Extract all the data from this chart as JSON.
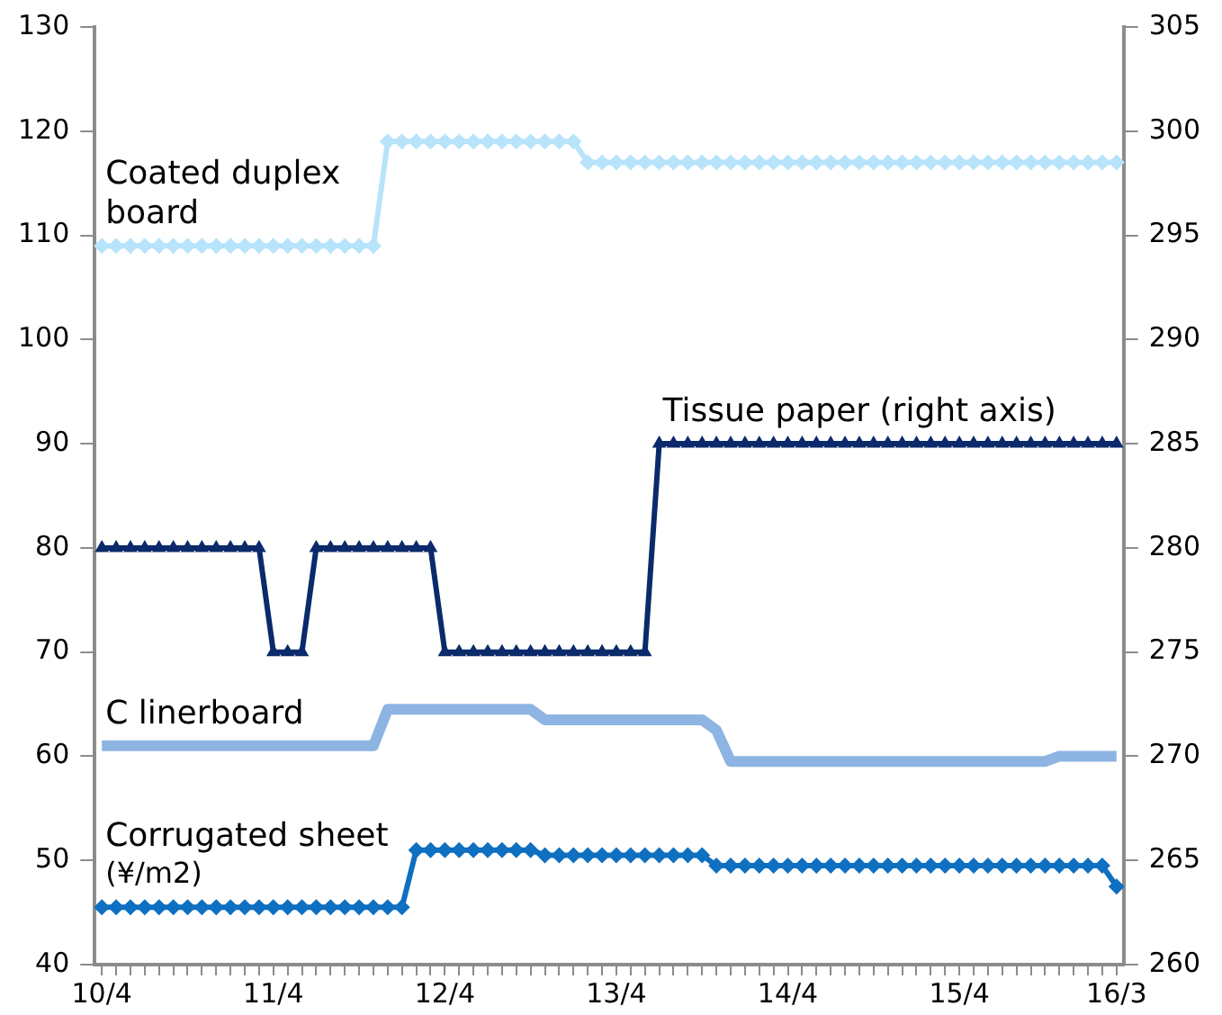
{
  "chart_data": {
    "type": "line",
    "categories": [
      "10/4",
      null,
      null,
      null,
      null,
      null,
      null,
      null,
      null,
      null,
      null,
      null,
      "11/4",
      null,
      null,
      null,
      null,
      null,
      null,
      null,
      null,
      null,
      null,
      null,
      "12/4",
      null,
      null,
      null,
      null,
      null,
      null,
      null,
      null,
      null,
      null,
      null,
      "13/4",
      null,
      null,
      null,
      null,
      null,
      null,
      null,
      null,
      null,
      null,
      null,
      "14/4",
      null,
      null,
      null,
      null,
      null,
      null,
      null,
      null,
      null,
      null,
      null,
      "15/4",
      null,
      null,
      null,
      null,
      null,
      null,
      null,
      null,
      null,
      null,
      "16/3"
    ],
    "ylim": [
      40,
      130
    ],
    "yticks": [
      40,
      50,
      60,
      70,
      80,
      90,
      100,
      110,
      120,
      130
    ],
    "y2lim": [
      260,
      305
    ],
    "y2ticks": [
      260,
      265,
      270,
      275,
      280,
      285,
      290,
      295,
      300,
      305
    ],
    "grid": false,
    "legend": false,
    "line_style": "solid",
    "annotations": [
      "(¥/m2)"
    ],
    "series": [
      {
        "name": "Coated duplex board",
        "color": "#b7e4fb",
        "marker": "diamond",
        "values": [
          109,
          109,
          109,
          109,
          109,
          109,
          109,
          109,
          109,
          109,
          109,
          109,
          109,
          109,
          109,
          109,
          109,
          109,
          109,
          109,
          119,
          119,
          119,
          119,
          119,
          119,
          119,
          119,
          119,
          119,
          119,
          119,
          119,
          119,
          117,
          117,
          117,
          117,
          117,
          117,
          117,
          117,
          117,
          117,
          117,
          117,
          117,
          117,
          117,
          117,
          117,
          117,
          117,
          117,
          117,
          117,
          117,
          117,
          117,
          117,
          117,
          117,
          117,
          117,
          117,
          117,
          117,
          117,
          117,
          117,
          117,
          117
        ]
      },
      {
        "name": "Tissue paper (right axis)",
        "color": "#0b2a6b",
        "marker": "triangle",
        "axis": "y2",
        "values": [
          280,
          280,
          280,
          280,
          280,
          280,
          280,
          280,
          280,
          280,
          280,
          280,
          275,
          275,
          275,
          280,
          280,
          280,
          280,
          280,
          280,
          280,
          280,
          280,
          275,
          275,
          275,
          275,
          275,
          275,
          275,
          275,
          275,
          275,
          275,
          275,
          275,
          275,
          275,
          285,
          285,
          285,
          285,
          285,
          285,
          285,
          285,
          285,
          285,
          285,
          285,
          285,
          285,
          285,
          285,
          285,
          285,
          285,
          285,
          285,
          285,
          285,
          285,
          285,
          285,
          285,
          285,
          285,
          285,
          285,
          285,
          285
        ]
      },
      {
        "name": "C linerboard",
        "color": "#8db4e2",
        "marker": "none",
        "values": [
          61,
          61,
          61,
          61,
          61,
          61,
          61,
          61,
          61,
          61,
          61,
          61,
          61,
          61,
          61,
          61,
          61,
          61,
          61,
          61,
          64.5,
          64.5,
          64.5,
          64.5,
          64.5,
          64.5,
          64.5,
          64.5,
          64.5,
          64.5,
          64.5,
          63.5,
          63.5,
          63.5,
          63.5,
          63.5,
          63.5,
          63.5,
          63.5,
          63.5,
          63.5,
          63.5,
          63.5,
          62.5,
          59.5,
          59.5,
          59.5,
          59.5,
          59.5,
          59.5,
          59.5,
          59.5,
          59.5,
          59.5,
          59.5,
          59.5,
          59.5,
          59.5,
          59.5,
          59.5,
          59.5,
          59.5,
          59.5,
          59.5,
          59.5,
          59.5,
          59.5,
          60,
          60,
          60,
          60,
          60
        ]
      },
      {
        "name": "Corrugated sheet",
        "color": "#0f6fc0",
        "marker": "diamond",
        "values": [
          45.5,
          45.5,
          45.5,
          45.5,
          45.5,
          45.5,
          45.5,
          45.5,
          45.5,
          45.5,
          45.5,
          45.5,
          45.5,
          45.5,
          45.5,
          45.5,
          45.5,
          45.5,
          45.5,
          45.5,
          45.5,
          45.5,
          51,
          51,
          51,
          51,
          51,
          51,
          51,
          51,
          51,
          50.5,
          50.5,
          50.5,
          50.5,
          50.5,
          50.5,
          50.5,
          50.5,
          50.5,
          50.5,
          50.5,
          50.5,
          49.5,
          49.5,
          49.5,
          49.5,
          49.5,
          49.5,
          49.5,
          49.5,
          49.5,
          49.5,
          49.5,
          49.5,
          49.5,
          49.5,
          49.5,
          49.5,
          49.5,
          49.5,
          49.5,
          49.5,
          49.5,
          49.5,
          49.5,
          49.5,
          49.5,
          49.5,
          49.5,
          49.5,
          47.5
        ]
      }
    ]
  }
}
